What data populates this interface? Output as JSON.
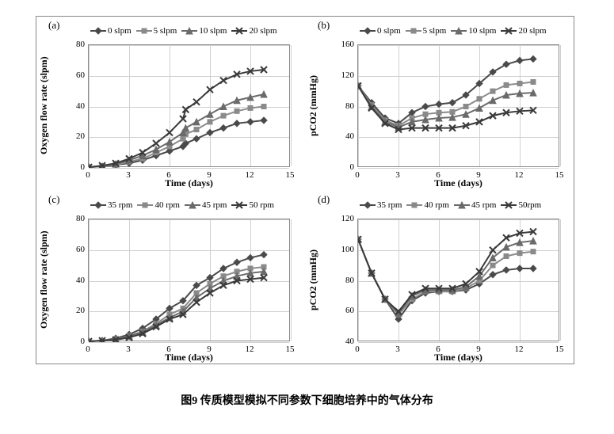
{
  "caption": "图9    传质模型模拟不同参数下细胞培养中的气体分布",
  "colors": {
    "s1": "#4a4a4a",
    "s2": "#8a8a8a",
    "s3": "#6a6a6a",
    "s4": "#3a3a3a",
    "grid": "#d0d0d0",
    "border": "#888888",
    "bg": "#ffffff"
  },
  "markers": {
    "s1": "diamond",
    "s2": "square",
    "s3": "triangle",
    "s4": "cross"
  },
  "font": {
    "label_size": 12,
    "tick_size": 11,
    "legend_size": 11,
    "caption_size": 14,
    "weight_bold": "bold"
  },
  "panels": {
    "a": {
      "label": "(a)",
      "xlabel": "Time (days)",
      "ylabel": "Oxygen flow rate (slpm)",
      "xlim": [
        0,
        15
      ],
      "xtick_step": 3,
      "ylim": [
        0,
        80
      ],
      "ytick_step": 20,
      "legend": [
        "0 slpm",
        "5 slpm",
        "10 slpm",
        "20 slpm"
      ],
      "x": [
        0,
        1,
        2,
        3,
        4,
        5,
        6,
        7,
        7.2,
        8,
        9,
        10,
        11,
        12,
        13
      ],
      "series": [
        [
          0.5,
          1,
          2,
          3,
          5,
          8,
          11,
          14,
          16,
          19,
          23,
          26,
          29,
          30,
          31
        ],
        [
          0.5,
          1,
          2,
          4,
          6,
          10,
          14,
          19,
          22,
          25,
          30,
          34,
          37,
          39,
          40
        ],
        [
          0.5,
          1,
          2.5,
          5,
          8,
          12,
          17,
          23,
          26,
          30,
          35,
          40,
          44,
          46,
          48
        ],
        [
          0.5,
          1.5,
          3,
          6,
          10,
          16,
          23,
          32,
          38,
          43,
          51,
          57,
          61,
          63,
          64
        ]
      ]
    },
    "b": {
      "label": "(b)",
      "xlabel": "Time (days)",
      "ylabel": "pCO2 (mmHg)",
      "xlim": [
        0,
        15
      ],
      "xtick_step": 3,
      "ylim": [
        0,
        160
      ],
      "ytick_step": 40,
      "legend": [
        "0 slpm",
        "5 slpm",
        "10 slpm",
        "20 slpm"
      ],
      "x": [
        0,
        1,
        2,
        3,
        4,
        5,
        6,
        7,
        8,
        9,
        10,
        11,
        12,
        13
      ],
      "series": [
        [
          107,
          85,
          65,
          58,
          72,
          80,
          83,
          85,
          95,
          110,
          125,
          135,
          140,
          142
        ],
        [
          107,
          82,
          62,
          55,
          65,
          70,
          72,
          73,
          80,
          90,
          100,
          108,
          110,
          112
        ],
        [
          107,
          80,
          60,
          53,
          60,
          63,
          65,
          66,
          70,
          78,
          88,
          95,
          97,
          98
        ],
        [
          107,
          78,
          58,
          50,
          52,
          52,
          52,
          52,
          55,
          60,
          68,
          72,
          74,
          75
        ]
      ]
    },
    "c": {
      "label": "(c)",
      "xlabel": "Time (days)",
      "ylabel": "Oxygen flow rate (slpm)",
      "xlim": [
        0,
        15
      ],
      "xtick_step": 3,
      "ylim": [
        0,
        80
      ],
      "ytick_step": 20,
      "legend": [
        "35 rpm",
        "40 rpm",
        "45 rpm",
        "50 rpm"
      ],
      "x": [
        0,
        1,
        2,
        3,
        4,
        5,
        6,
        7,
        8,
        9,
        10,
        11,
        12,
        13
      ],
      "series": [
        [
          0.5,
          1,
          2.5,
          5,
          9,
          15,
          22,
          27,
          37,
          42,
          48,
          52,
          55,
          57
        ],
        [
          0.5,
          1,
          2,
          4,
          7,
          12,
          18,
          22,
          32,
          38,
          43,
          46,
          48,
          49
        ],
        [
          0.5,
          1,
          2,
          4,
          6.5,
          11,
          16,
          20,
          29,
          35,
          40,
          43,
          45,
          46
        ],
        [
          0.5,
          1,
          1.5,
          3,
          5.5,
          10,
          15,
          18,
          26,
          32,
          37,
          40,
          41,
          42
        ]
      ]
    },
    "d": {
      "label": "(d)",
      "xlabel": "Time (days)",
      "ylabel": "pCO2 (mmHg)",
      "xlim": [
        0,
        15
      ],
      "xtick_step": 3,
      "ylim": [
        40,
        120
      ],
      "ytick_step": 20,
      "legend": [
        "35 rpm",
        "40 rpm",
        "45 rpm",
        "50rpm"
      ],
      "x": [
        0,
        1,
        2,
        3,
        4,
        5,
        6,
        7,
        8,
        9,
        10,
        11,
        12,
        13
      ],
      "series": [
        [
          107,
          85,
          68,
          55,
          67,
          72,
          73,
          73,
          74,
          78,
          84,
          87,
          88,
          88
        ],
        [
          107,
          85,
          68,
          58,
          68,
          73,
          73,
          73,
          75,
          80,
          90,
          96,
          98,
          99
        ],
        [
          107,
          85,
          68,
          59,
          70,
          74,
          74,
          74,
          76,
          83,
          95,
          102,
          105,
          106
        ],
        [
          107,
          85,
          68,
          60,
          71,
          75,
          75,
          75,
          78,
          86,
          100,
          108,
          111,
          112
        ]
      ]
    }
  }
}
